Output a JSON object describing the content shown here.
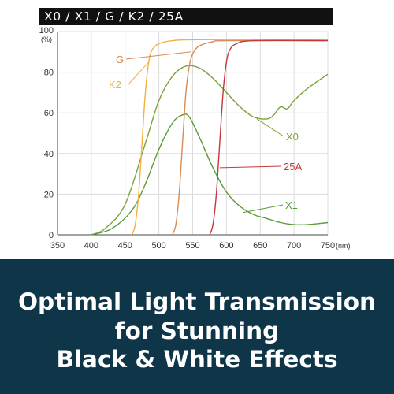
{
  "header": {
    "title": "X0 / X1 / G / K2 / 25A"
  },
  "banner": {
    "lines": [
      "Optimal Light Transmission",
      "for Stunning",
      "Black & White Effects"
    ]
  },
  "chart_data": {
    "type": "line",
    "xlim": [
      350,
      750
    ],
    "ylim": [
      0,
      100
    ],
    "x_ticks": [
      350,
      400,
      450,
      500,
      550,
      600,
      650,
      700,
      750
    ],
    "y_ticks": [
      0,
      20,
      40,
      60,
      80,
      100
    ],
    "x_unit_label": "(nm)",
    "y_unit_label": "(%)",
    "grid": true,
    "legend": "inline-labels",
    "series": [
      {
        "name": "X0",
        "color": "#7ba23a",
        "points": [
          [
            400,
            0
          ],
          [
            420,
            3
          ],
          [
            450,
            15
          ],
          [
            480,
            45
          ],
          [
            500,
            66
          ],
          [
            520,
            78
          ],
          [
            540,
            83
          ],
          [
            560,
            82
          ],
          [
            580,
            77
          ],
          [
            600,
            70
          ],
          [
            620,
            63
          ],
          [
            640,
            58
          ],
          [
            660,
            57
          ],
          [
            670,
            59
          ],
          [
            680,
            63
          ],
          [
            690,
            62
          ],
          [
            700,
            66
          ],
          [
            720,
            72
          ],
          [
            750,
            79
          ]
        ]
      },
      {
        "name": "X1",
        "color": "#5b9a35",
        "points": [
          [
            400,
            0
          ],
          [
            430,
            3
          ],
          [
            460,
            12
          ],
          [
            480,
            25
          ],
          [
            500,
            42
          ],
          [
            520,
            55
          ],
          [
            535,
            59
          ],
          [
            545,
            58
          ],
          [
            560,
            48
          ],
          [
            580,
            33
          ],
          [
            600,
            21
          ],
          [
            620,
            14
          ],
          [
            640,
            10
          ],
          [
            660,
            8
          ],
          [
            680,
            6
          ],
          [
            700,
            5
          ],
          [
            720,
            5
          ],
          [
            750,
            6
          ]
        ]
      },
      {
        "name": "G",
        "color": "#d98a55",
        "points": [
          [
            520,
            0
          ],
          [
            525,
            5
          ],
          [
            530,
            20
          ],
          [
            535,
            45
          ],
          [
            540,
            70
          ],
          [
            545,
            83
          ],
          [
            550,
            89
          ],
          [
            560,
            93
          ],
          [
            580,
            95
          ],
          [
            600,
            95.5
          ],
          [
            750,
            95.5
          ]
        ]
      },
      {
        "name": "K2",
        "color": "#f2b13c",
        "points": [
          [
            460,
            0
          ],
          [
            465,
            5
          ],
          [
            470,
            20
          ],
          [
            475,
            45
          ],
          [
            480,
            70
          ],
          [
            485,
            85
          ],
          [
            490,
            91
          ],
          [
            500,
            94
          ],
          [
            520,
            95.5
          ],
          [
            560,
            96
          ],
          [
            750,
            96
          ]
        ]
      },
      {
        "name": "25A",
        "color": "#c5383a",
        "points": [
          [
            575,
            0
          ],
          [
            580,
            5
          ],
          [
            585,
            20
          ],
          [
            590,
            45
          ],
          [
            595,
            70
          ],
          [
            600,
            85
          ],
          [
            605,
            91
          ],
          [
            615,
            94
          ],
          [
            640,
            95.5
          ],
          [
            750,
            95.5
          ]
        ]
      }
    ]
  }
}
